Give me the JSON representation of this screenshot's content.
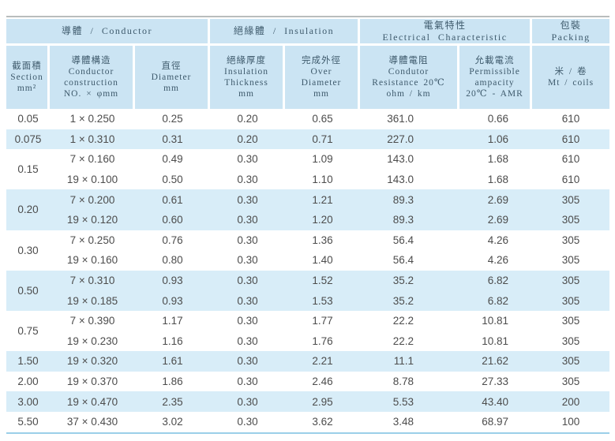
{
  "colors": {
    "header_fill": "#cbe4f3",
    "band_fill": "#d8edf8",
    "header_text": "#3e5a6c",
    "body_text": "#4c4c4c",
    "top_rule": "#b9bdbd",
    "bottom_rule": "#9bcfe9"
  },
  "table": {
    "groups": [
      {
        "id": "conductor",
        "colspan": 3,
        "lines": [
          "導體 / Conductor"
        ]
      },
      {
        "id": "insulation",
        "colspan": 2,
        "lines": [
          "絕緣體 / Insulation"
        ]
      },
      {
        "id": "electrical-characteristic",
        "colspan": 2,
        "lines": [
          "電氣特性",
          "Electrical Characteristic"
        ]
      },
      {
        "id": "packing",
        "colspan": 1,
        "lines": [
          "包裝",
          "Packing"
        ]
      }
    ],
    "columns": [
      {
        "id": "section",
        "lines": [
          "截面積",
          "Section",
          "mm²"
        ]
      },
      {
        "id": "conductor-construction",
        "lines": [
          "導體構造",
          "Conductor",
          "construction",
          "NO. × φmm"
        ]
      },
      {
        "id": "diameter",
        "lines": [
          "直徑",
          "Diameter",
          "mm"
        ]
      },
      {
        "id": "insulation-thickness",
        "lines": [
          "絕緣厚度",
          "Insulation",
          "Thickness",
          "mm"
        ]
      },
      {
        "id": "over-diameter",
        "lines": [
          "完成外徑",
          "Over",
          "Diameter",
          "mm"
        ]
      },
      {
        "id": "conductor-resistance",
        "lines": [
          "導體電阻",
          "Condutor",
          "Resistance 20℃",
          "ohm / km"
        ]
      },
      {
        "id": "permissible-ampacity",
        "lines": [
          "允載電流",
          "Permissible",
          "ampacity",
          "20℃ - AMR"
        ]
      },
      {
        "id": "mt-coils",
        "lines": [
          "米 / 卷",
          "Mt / coils"
        ]
      }
    ],
    "cell_names": [
      "construction",
      "diameter",
      "thickness",
      "over-diameter",
      "resistance",
      "ampacity",
      "coils"
    ],
    "row_groups": [
      {
        "section": "0.05",
        "band": "white",
        "rows": [
          [
            "1 × 0.250",
            "0.25",
            "0.20",
            "0.65",
            "361.0",
            "0.66",
            "610"
          ]
        ]
      },
      {
        "section": "0.075",
        "band": "blue",
        "rows": [
          [
            "1 × 0.310",
            "0.31",
            "0.20",
            "0.71",
            "227.0",
            "1.06",
            "610"
          ]
        ]
      },
      {
        "section": "0.15",
        "band": "white",
        "rows": [
          [
            "7 × 0.160",
            "0.49",
            "0.30",
            "1.09",
            "143.0",
            "1.68",
            "610"
          ],
          [
            "19 × 0.100",
            "0.50",
            "0.30",
            "1.10",
            "143.0",
            "1.68",
            "610"
          ]
        ]
      },
      {
        "section": "0.20",
        "band": "blue",
        "rows": [
          [
            "7 × 0.200",
            "0.61",
            "0.30",
            "1.21",
            "89.3",
            "2.69",
            "305"
          ],
          [
            "19 × 0.120",
            "0.60",
            "0.30",
            "1.20",
            "89.3",
            "2.69",
            "305"
          ]
        ]
      },
      {
        "section": "0.30",
        "band": "white",
        "rows": [
          [
            "7 × 0.250",
            "0.76",
            "0.30",
            "1.36",
            "56.4",
            "4.26",
            "305"
          ],
          [
            "19 × 0.160",
            "0.80",
            "0.30",
            "1.40",
            "56.4",
            "4.26",
            "305"
          ]
        ]
      },
      {
        "section": "0.50",
        "band": "blue",
        "rows": [
          [
            "7 × 0.310",
            "0.93",
            "0.30",
            "1.52",
            "35.2",
            "6.82",
            "305"
          ],
          [
            "19 × 0.185",
            "0.93",
            "0.30",
            "1.53",
            "35.2",
            "6.82",
            "305"
          ]
        ]
      },
      {
        "section": "0.75",
        "band": "white",
        "rows": [
          [
            "7 × 0.390",
            "1.17",
            "0.30",
            "1.77",
            "22.2",
            "10.81",
            "305"
          ],
          [
            "19 × 0.230",
            "1.16",
            "0.30",
            "1.76",
            "22.2",
            "10.81",
            "305"
          ]
        ]
      },
      {
        "section": "1.50",
        "band": "blue",
        "rows": [
          [
            "19 × 0.320",
            "1.61",
            "0.30",
            "2.21",
            "11.1",
            "21.62",
            "305"
          ]
        ]
      },
      {
        "section": "2.00",
        "band": "white",
        "rows": [
          [
            "19 × 0.370",
            "1.86",
            "0.30",
            "2.46",
            "8.78",
            "27.33",
            "305"
          ]
        ]
      },
      {
        "section": "3.00",
        "band": "blue",
        "rows": [
          [
            "19 × 0.470",
            "2.35",
            "0.30",
            "2.95",
            "5.53",
            "43.40",
            "200"
          ]
        ]
      },
      {
        "section": "5.50",
        "band": "white",
        "rows": [
          [
            "37 × 0.430",
            "3.02",
            "0.30",
            "3.62",
            "3.48",
            "68.97",
            "100"
          ]
        ]
      }
    ]
  }
}
